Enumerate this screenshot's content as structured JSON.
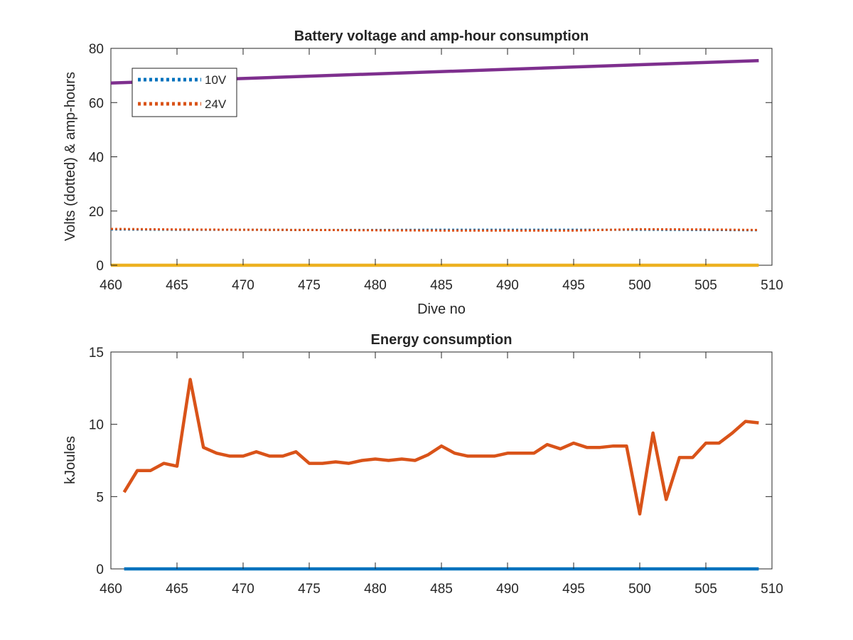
{
  "chart_data": [
    {
      "type": "line",
      "title": "Battery voltage and amp-hour consumption",
      "xlabel": "Dive no",
      "ylabel": "Volts (dotted) & amp-hours",
      "xlim": [
        460,
        510
      ],
      "ylim": [
        0,
        80
      ],
      "xticks": [
        460,
        465,
        470,
        475,
        480,
        485,
        490,
        495,
        500,
        505,
        510
      ],
      "yticks": [
        0,
        20,
        40,
        60,
        80
      ],
      "grid": false,
      "legend_position": "top-left",
      "series": [
        {
          "name": "10V",
          "style": "dotted",
          "color": "#0072BD",
          "x": [
            460,
            465,
            470,
            475,
            480,
            485,
            490,
            495,
            500,
            505,
            509
          ],
          "y": [
            13.2,
            13.1,
            13.1,
            13.0,
            13.0,
            13.1,
            13.1,
            13.1,
            13.1,
            13.0,
            12.9
          ]
        },
        {
          "name": "24V",
          "style": "dotted",
          "color": "#D95319",
          "x": [
            460,
            465,
            470,
            475,
            480,
            485,
            490,
            495,
            500,
            505,
            509
          ],
          "y": [
            13.4,
            13.2,
            13.1,
            13.0,
            12.9,
            12.8,
            12.8,
            12.8,
            13.3,
            13.2,
            13.0
          ]
        },
        {
          "style": "solid",
          "color": "#7E2F8E",
          "x": [
            460,
            509
          ],
          "y": [
            67.2,
            75.5
          ]
        },
        {
          "style": "solid",
          "color": "#EDB120",
          "x": [
            460,
            509
          ],
          "y": [
            0,
            0
          ]
        }
      ]
    },
    {
      "type": "line",
      "title": "Energy consumption",
      "xlabel": "",
      "ylabel": "kJoules",
      "xlim": [
        460,
        510
      ],
      "ylim": [
        0,
        15
      ],
      "xticks": [
        460,
        465,
        470,
        475,
        480,
        485,
        490,
        495,
        500,
        505,
        510
      ],
      "yticks": [
        0,
        5,
        10,
        15
      ],
      "grid": false,
      "series": [
        {
          "style": "solid",
          "color": "#D95319",
          "x": [
            461,
            462,
            463,
            464,
            465,
            466,
            467,
            468,
            469,
            470,
            471,
            472,
            473,
            474,
            475,
            476,
            477,
            478,
            479,
            480,
            481,
            482,
            483,
            484,
            485,
            486,
            487,
            488,
            489,
            490,
            491,
            492,
            493,
            494,
            495,
            496,
            497,
            498,
            499,
            500,
            501,
            502,
            503,
            504,
            505,
            506,
            507,
            508,
            509
          ],
          "y": [
            5.3,
            6.8,
            6.8,
            7.3,
            7.1,
            13.1,
            8.4,
            8.0,
            7.8,
            7.8,
            8.1,
            7.8,
            7.8,
            8.1,
            7.3,
            7.3,
            7.4,
            7.3,
            7.5,
            7.6,
            7.5,
            7.6,
            7.5,
            7.9,
            8.5,
            8.0,
            7.8,
            7.8,
            7.8,
            8.0,
            8.0,
            8.0,
            8.6,
            8.3,
            8.7,
            8.4,
            8.4,
            8.5,
            8.5,
            3.8,
            9.4,
            4.8,
            7.7,
            7.7,
            8.7,
            8.7,
            9.4,
            10.2,
            10.1
          ]
        },
        {
          "style": "solid",
          "color": "#0072BD",
          "x": [
            461,
            509
          ],
          "y": [
            0,
            0
          ]
        }
      ]
    }
  ]
}
